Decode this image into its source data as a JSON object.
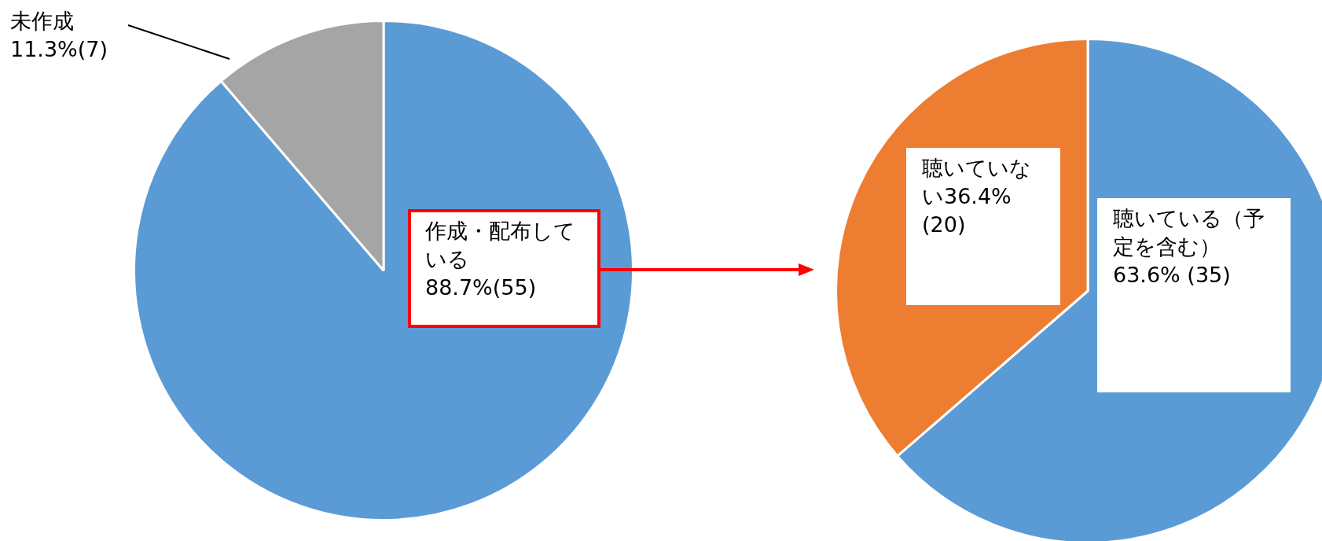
{
  "chart_data": [
    {
      "type": "pie",
      "categories": [
        "作成・配布している",
        "未作成"
      ],
      "values": [
        55,
        7
      ],
      "colors": [
        "#5b9bd5",
        "#a5a5a5"
      ],
      "value_labels": [
        "88.7%(55)",
        "11.3%(7)"
      ]
    },
    {
      "type": "pie",
      "categories": [
        "聴いている（予定を含む）",
        "聴いていない"
      ],
      "values": [
        35,
        20
      ],
      "colors": [
        "#5b9bd5",
        "#ed7d31"
      ],
      "value_labels": [
        "63.6% (35)",
        "36.4%(20)"
      ]
    }
  ]
}
